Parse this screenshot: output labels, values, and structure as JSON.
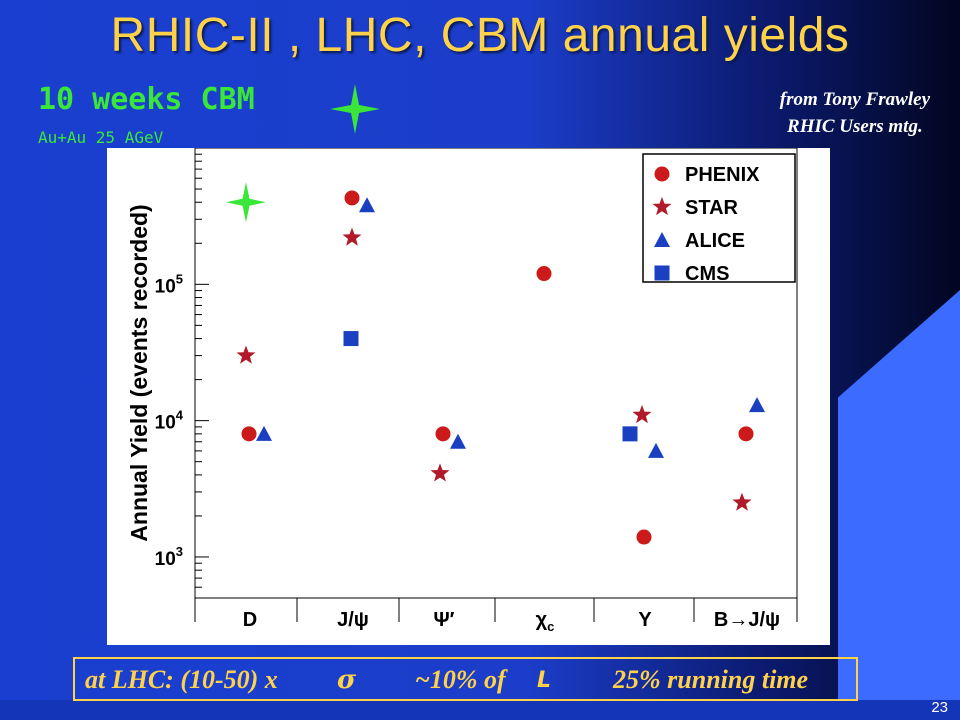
{
  "slide": {
    "title": "RHIC-II , LHC, CBM annual yields",
    "cbm_label": "10 weeks CBM",
    "cbm_sublabel": "Au+Au 25 AGeV",
    "credit_line1": "from Tony Frawley",
    "credit_line2": "RHIC Users mtg.",
    "footer": {
      "part1": "at LHC:  (10-50) x",
      "sigma": "σ",
      "part2": "~10% of",
      "lumi": "L",
      "part3": "25% running time"
    },
    "page_number": "23"
  },
  "colors": {
    "title": "#ffd24a",
    "cbm": "#39e639",
    "phenix": "#cc1a1a",
    "star": "#b01a2a",
    "alice": "#1a3fc0",
    "cms": "#1a3fc0"
  },
  "chart_data": {
    "type": "scatter",
    "ylabel": "Annual Yield (events recorded)",
    "yscale": "log",
    "ylim": [
      500,
      1000000
    ],
    "yticks": [
      {
        "value": 1000,
        "base": "10",
        "exp": "3"
      },
      {
        "value": 10000,
        "base": "10",
        "exp": "4"
      },
      {
        "value": 100000,
        "base": "10",
        "exp": "5"
      }
    ],
    "categories": [
      "D",
      "J/ψ",
      "Ψ′",
      "χc",
      "Υ",
      "B→J/ψ"
    ],
    "legend_position": "top-right",
    "series": [
      {
        "name": "PHENIX",
        "marker": "circle",
        "points": [
          {
            "cat": 0,
            "y": 8000
          },
          {
            "cat": 1,
            "y": 430000
          },
          {
            "cat": 2,
            "y": 8000
          },
          {
            "cat": 3,
            "y": 120000
          },
          {
            "cat": 4,
            "y": 1400
          },
          {
            "cat": 5,
            "y": 8000
          }
        ]
      },
      {
        "name": "STAR",
        "marker": "star",
        "points": [
          {
            "cat": 0,
            "y": 30000
          },
          {
            "cat": 1,
            "y": 220000
          },
          {
            "cat": 2,
            "y": 4100
          },
          {
            "cat": 4,
            "y": 11000
          },
          {
            "cat": 5,
            "y": 2500
          }
        ]
      },
      {
        "name": "ALICE",
        "marker": "triangle",
        "points": [
          {
            "cat": 0,
            "y": 8000
          },
          {
            "cat": 1,
            "y": 380000
          },
          {
            "cat": 2,
            "y": 7000
          },
          {
            "cat": 4,
            "y": 6000
          },
          {
            "cat": 5,
            "y": 13000
          }
        ]
      },
      {
        "name": "CMS",
        "marker": "square",
        "points": [
          {
            "cat": 1,
            "y": 40000
          },
          {
            "cat": 4,
            "y": 8000
          }
        ]
      }
    ],
    "cbm_point": {
      "cat": 0,
      "y": 400000
    }
  }
}
